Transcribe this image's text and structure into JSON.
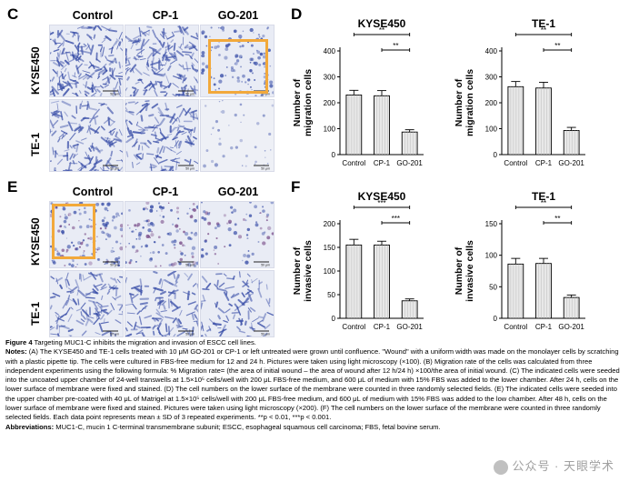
{
  "panels": {
    "c": "C",
    "d": "D",
    "e": "E",
    "f": "F"
  },
  "image_columns": [
    "Control",
    "CP-1",
    "GO-201"
  ],
  "image_rows": [
    "KYSE450",
    "TE-1"
  ],
  "scale_bar": "50 μm",
  "colors": {
    "highlight": "#f2a93b",
    "bar_fill": "#e8e8e8",
    "stain": "#3a4fa8"
  },
  "caption": {
    "figure_label": "Figure 4",
    "figure_title": "Targeting MUC1-C inhibits the migration and invasion of ESCC cell lines.",
    "notes_label": "Notes:",
    "notes_text": "(A) The KYSE450 and TE-1 cells treated with 10 μM GO-201 or CP-1 or left untreated were grown until confluence. \"Wound\" with a uniform width was made on the monolayer cells by scratching with a plastic pipette tip. The cells were cultured in FBS-free medium for 12 and 24 h. Pictures were taken using light microscopy (×100). (B) Migration rate of the cells was calculated from three independent experiments using the following formula: % Migration rate= (the area of initial wound – the area of wound after 12 h/24 h) ×100/the area of initial wound. (C) The indicated cells were seeded into the uncoated upper chamber of 24-well transwells at 1.5×10⁵ cells/well with 200 μL FBS-free medium, and 600 μL of medium with 15% FBS was added to the lower chamber. After 24 h, cells on the lower surface of membrane were fixed and stained. (D) The cell numbers on the lower surface of the membrane were counted in three randomly selected fields. (E) The indicated cells were seeded into the upper chamber pre-coated with 40 μL of Matrigel at 1.5×10⁵ cells/well with 200 μL FBS-free medium, and 600 μL of medium with 15% FBS was added to the low chamber. After 48 h, cells on the lower surface of membrane were fixed and stained. Pictures were taken using light microscopy (×200). (F) The cell numbers on the lower surface of the membrane were counted in three randomly selected fields. Each data point represents mean ± SD of 3 repeated experiments. **p < 0.01, ***p < 0.001.",
    "abbrev_label": "Abbreviations:",
    "abbrev_text": "MUC1-C, mucin 1 C-terminal transmembrane subunit; ESCC, esophageal squamous cell carcinoma; FBS, fetal bovine serum."
  },
  "watermark": "公众号 · 天眼学术",
  "chart_data": [
    {
      "type": "bar",
      "panel": "D",
      "title": "KYSE450",
      "ylabel": "Number of migration cells",
      "categories": [
        "Control",
        "CP-1",
        "GO-201"
      ],
      "values": [
        230,
        227,
        87
      ],
      "errors": [
        18,
        20,
        9
      ],
      "ylim": [
        0,
        400
      ],
      "yticks": [
        0,
        100,
        200,
        300,
        400
      ],
      "significance": [
        {
          "from": 0,
          "to": 2,
          "label": "**"
        },
        {
          "from": 1,
          "to": 2,
          "label": "**"
        }
      ]
    },
    {
      "type": "bar",
      "panel": "D",
      "title": "TE-1",
      "ylabel": "Number of migration cells",
      "categories": [
        "Control",
        "CP-1",
        "GO-201"
      ],
      "values": [
        262,
        257,
        93
      ],
      "errors": [
        20,
        22,
        12
      ],
      "ylim": [
        0,
        400
      ],
      "yticks": [
        0,
        100,
        200,
        300,
        400
      ],
      "significance": [
        {
          "from": 0,
          "to": 2,
          "label": "**"
        },
        {
          "from": 1,
          "to": 2,
          "label": "**"
        }
      ]
    },
    {
      "type": "bar",
      "panel": "F",
      "title": "KYSE450",
      "ylabel": "Number of invasive cells",
      "categories": [
        "Control",
        "CP-1",
        "GO-201"
      ],
      "values": [
        155,
        155,
        37
      ],
      "errors": [
        12,
        8,
        4
      ],
      "ylim": [
        0,
        200
      ],
      "yticks": [
        0,
        50,
        100,
        150,
        200
      ],
      "significance": [
        {
          "from": 0,
          "to": 2,
          "label": "***"
        },
        {
          "from": 1,
          "to": 2,
          "label": "***"
        }
      ]
    },
    {
      "type": "bar",
      "panel": "F",
      "title": "TE-1",
      "ylabel": "Number of invasive cells",
      "categories": [
        "Control",
        "CP-1",
        "GO-201"
      ],
      "values": [
        86,
        87,
        33
      ],
      "errors": [
        9,
        8,
        4
      ],
      "ylim": [
        0,
        150
      ],
      "yticks": [
        0,
        50,
        100,
        150
      ],
      "significance": [
        {
          "from": 0,
          "to": 2,
          "label": "**"
        },
        {
          "from": 1,
          "to": 2,
          "label": "**"
        }
      ]
    }
  ]
}
